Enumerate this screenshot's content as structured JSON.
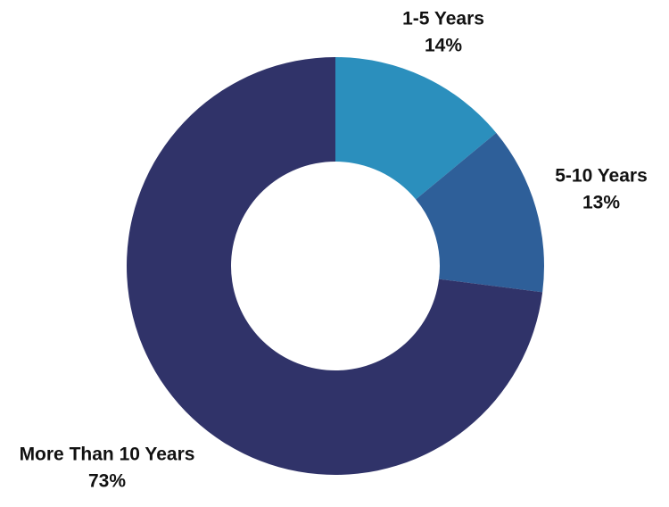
{
  "chart_data": {
    "type": "donut",
    "categories": [
      "1-5 Years",
      "5-10 Years",
      "More Than 10 Years"
    ],
    "values": [
      14,
      13,
      73
    ],
    "value_labels": [
      "14%",
      "13%",
      "73%"
    ],
    "colors": [
      "#2b8fbd",
      "#2e5f99",
      "#303369"
    ]
  }
}
